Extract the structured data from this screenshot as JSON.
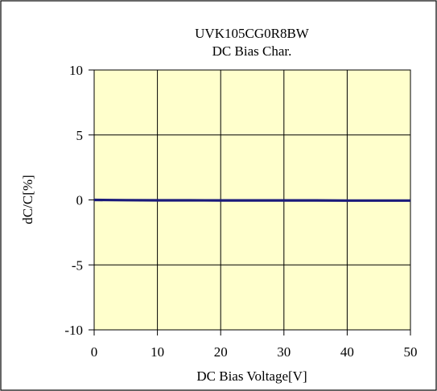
{
  "chart_data": {
    "type": "line",
    "title": "UVK105CG0R8BW",
    "subtitle": "DC Bias Char.",
    "xlabel": "DC Bias Voltage[V]",
    "ylabel": "dC/C[%]",
    "xlim": [
      0,
      50
    ],
    "ylim": [
      -10,
      10
    ],
    "xticks": [
      0,
      10,
      20,
      30,
      40,
      50
    ],
    "yticks": [
      10,
      5,
      0,
      -5,
      -10
    ],
    "xtick_labels": [
      "0",
      "10",
      "20",
      "30",
      "40",
      "50"
    ],
    "ytick_labels": [
      "10",
      "5",
      "0",
      "-5",
      "-10"
    ],
    "grid": true,
    "series": [
      {
        "x": [
          0,
          5,
          10,
          15,
          20,
          25,
          30,
          35,
          40,
          45,
          50
        ],
        "y": [
          0,
          -0.02,
          -0.03,
          -0.03,
          -0.04,
          -0.04,
          -0.04,
          -0.04,
          -0.05,
          -0.05,
          -0.05
        ],
        "color": "#1a1a7a"
      }
    ]
  },
  "colors": {
    "plot_background": "#ffffcc",
    "grid": "#000000",
    "frame": "#000000",
    "line": "#1a1a7a"
  }
}
